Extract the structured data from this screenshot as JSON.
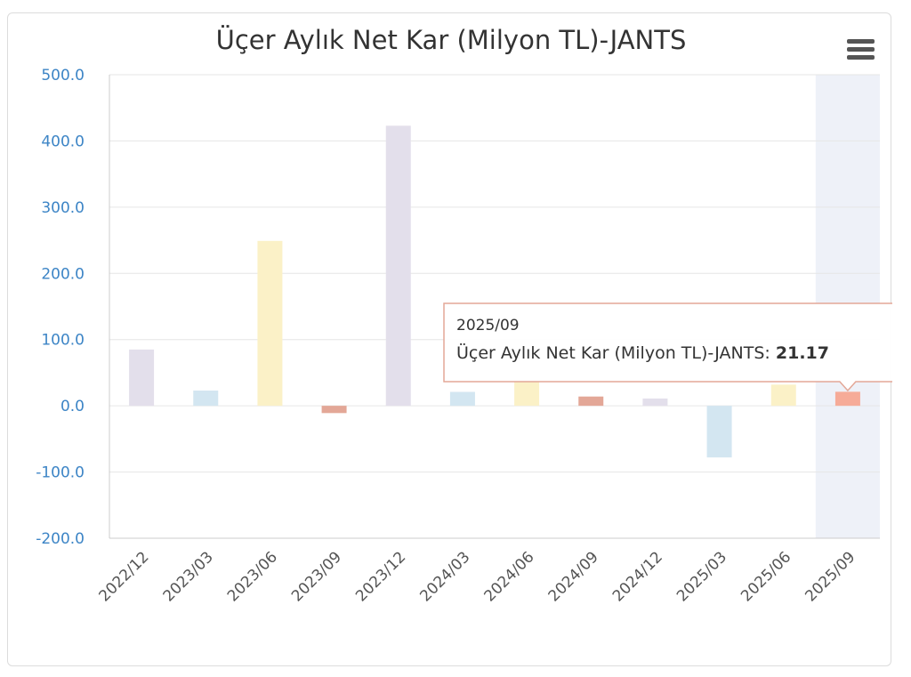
{
  "chart_data": {
    "type": "bar",
    "title": "Üçer Aylık Net Kar (Milyon TL)-JANTS",
    "xlabel": "",
    "ylabel": "",
    "ylim": [
      -200,
      500
    ],
    "yticks": [
      -200,
      -100,
      0,
      100,
      200,
      300,
      400,
      500
    ],
    "ytick_labels": [
      "-200.0",
      "-100.0",
      "0.0",
      "100.0",
      "200.0",
      "300.0",
      "400.0",
      "500.0"
    ],
    "categories": [
      "2022/12",
      "2023/03",
      "2023/06",
      "2023/09",
      "2023/12",
      "2024/03",
      "2024/06",
      "2024/09",
      "2024/12",
      "2025/03",
      "2025/06",
      "2025/09"
    ],
    "series": [
      {
        "values": [
          85,
          23,
          249,
          -11,
          423,
          21,
          38,
          14,
          11,
          -78,
          32,
          21.17
        ]
      }
    ],
    "bar_colors": [
      "#e3dfeb",
      "#d3e6f1",
      "#fbf1c7",
      "#e3a797",
      "#e3dfeb",
      "#d3e6f1",
      "#fbf1c7",
      "#e3a797",
      "#e3dfeb",
      "#d3e6f1",
      "#fbf1c7",
      "#f6ab98"
    ],
    "grid": true,
    "legend": "none",
    "highlighted_index": 11,
    "tooltip": {
      "category": "2025/09",
      "series_label": "Üçer Aylık Net Kar (Milyon TL)-JANTS: ",
      "value_label": "21.17"
    },
    "colors": {
      "axis_label": "#3d85c6",
      "grid": "#e6e6e6",
      "highlight_band": "#eef1f8",
      "tooltip_border": "#e3a797"
    }
  },
  "menu_icon": "hamburger-icon"
}
